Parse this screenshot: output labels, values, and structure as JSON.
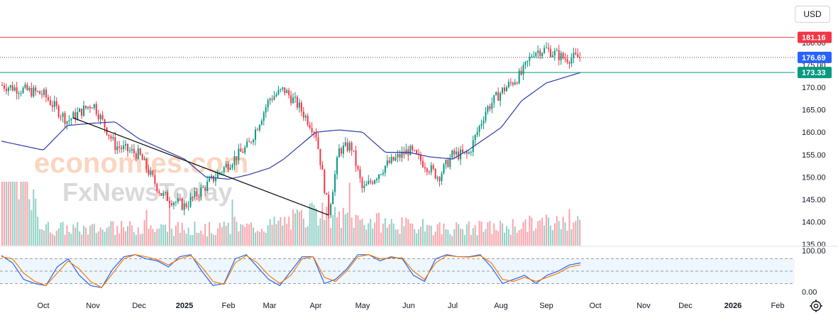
{
  "currency": "USD",
  "watermark": {
    "line1": "economies.com",
    "line2": "FxNewsToday"
  },
  "chart_data": [
    {
      "type": "candlestick",
      "title": "",
      "y_axis": {
        "ticks": [
          135,
          140,
          145,
          150,
          155,
          160,
          165,
          170,
          175,
          180
        ],
        "tick_labels": [
          "135.00",
          "140.00",
          "145.00",
          "150.00",
          "155.00",
          "160.00",
          "165.00",
          "170.00",
          "175.00",
          "180.00"
        ],
        "range": [
          135,
          181.7
        ]
      },
      "x_axis": {
        "labels": [
          "Oct",
          "Nov",
          "Dec",
          "2025",
          "Feb",
          "Mar",
          "Apr",
          "May",
          "Jun",
          "Jul",
          "Aug",
          "Sep",
          "Oct",
          "Nov",
          "Dec",
          "2026",
          "Feb"
        ]
      },
      "grid": false,
      "price_lines": [
        {
          "value": 181.16,
          "label": "181.16",
          "color": "#f23645",
          "style": "solid"
        },
        {
          "value": 176.69,
          "label": "176.69",
          "color": "#2962ff",
          "style": "dotted"
        },
        {
          "value": 173.33,
          "label": "173.33",
          "color": "#089981",
          "style": "solid"
        }
      ],
      "trendline": {
        "start": [
          "Apr",
          141.5
        ],
        "end": [
          "Oct",
          163.2
        ],
        "color": "#000000"
      },
      "moving_average_anchors": [
        [
          "Oct",
          156.0
        ],
        [
          "mid-Oct",
          161.5
        ],
        [
          "Nov",
          162.0
        ],
        [
          "mid-Nov",
          162.3
        ],
        [
          "Dec",
          158.5
        ],
        [
          "2025",
          154.0
        ],
        [
          "mid-Jan",
          150.0
        ],
        [
          "Feb",
          149.5
        ],
        [
          "mid-Feb",
          150.5
        ],
        [
          "Mar",
          152.0
        ],
        [
          "mid-Mar",
          154.0
        ],
        [
          "Apr",
          160.0
        ],
        [
          "mid-Apr",
          160.5
        ],
        [
          "May",
          160.0
        ],
        [
          "mid-May",
          155.5
        ],
        [
          "Jun",
          155.5
        ],
        [
          "mid-Jun",
          154.5
        ],
        [
          "Jul",
          154.0
        ],
        [
          "mid-Jul",
          156.0
        ],
        [
          "Aug",
          161.0
        ],
        [
          "mid-Aug",
          167.0
        ],
        [
          "Sep",
          171.0
        ],
        [
          "late-Sep",
          173.3
        ]
      ],
      "price_anchors": [
        [
          "Oct",
          168.5
        ],
        [
          "mid-Oct",
          162.5
        ],
        [
          "Nov",
          166.5
        ],
        [
          "mid-Nov",
          157.0
        ],
        [
          "Dec",
          155.0
        ],
        [
          "mid-Dec",
          146.0
        ],
        [
          "2025",
          143.5
        ],
        [
          "mid-Jan",
          148.0
        ],
        [
          "Feb",
          153.0
        ],
        [
          "mid-Feb",
          157.0
        ],
        [
          "Mar",
          167.5
        ],
        [
          "mid-Mar",
          169.5
        ],
        [
          "late-Mar",
          166.0
        ],
        [
          "Apr",
          160.0
        ],
        [
          "early-Apr",
          142.0
        ],
        [
          "mid-Apr",
          156.0
        ],
        [
          "late-Apr",
          157.0
        ],
        [
          "May",
          147.0
        ],
        [
          "mid-May",
          152.5
        ],
        [
          "Jun",
          156.0
        ],
        [
          "mid-Jun",
          152.0
        ],
        [
          "late-Jun",
          150.0
        ],
        [
          "Jul",
          155.0
        ],
        [
          "mid-Jul",
          155.0
        ],
        [
          "late-Jul",
          165.0
        ],
        [
          "Aug",
          169.0
        ],
        [
          "mid-Aug",
          173.0
        ],
        [
          "late-Aug",
          178.0
        ],
        [
          "Sep",
          178.5
        ],
        [
          "mid-Sep",
          176.5
        ],
        [
          "late-Sep",
          176.69
        ]
      ],
      "volume_levels": [
        [
          "Oct",
          0.35
        ],
        [
          "Nov",
          0.32
        ],
        [
          "Dec",
          0.35
        ],
        [
          "2025",
          0.33
        ],
        [
          "Feb",
          0.32
        ],
        [
          "Mar",
          0.4
        ],
        [
          "Apr",
          0.6
        ],
        [
          "May",
          0.5
        ],
        [
          "Jun",
          0.38
        ],
        [
          "Jul",
          0.33
        ],
        [
          "Aug",
          0.36
        ],
        [
          "Sep",
          0.45
        ]
      ]
    },
    {
      "type": "line",
      "title": "",
      "y_axis": {
        "ticks": [
          0,
          100
        ],
        "tick_labels": [
          "0.00",
          "100.00"
        ],
        "range": [
          0,
          100
        ]
      },
      "bands": [
        80,
        50,
        20
      ],
      "series": [
        {
          "color": "#2962ff",
          "values": [
            88,
            70,
            30,
            20,
            15,
            60,
            80,
            40,
            15,
            10,
            55,
            85,
            90,
            80,
            75,
            60,
            85,
            90,
            50,
            15,
            20,
            80,
            90,
            60,
            30,
            15,
            50,
            85,
            85,
            20,
            30,
            55,
            90,
            90,
            75,
            85,
            80,
            40,
            25,
            80,
            90,
            85,
            85,
            90,
            60,
            20,
            30,
            40,
            20,
            40,
            50,
            65,
            70
          ]
        },
        {
          "color": "#f57c00",
          "values": [
            85,
            80,
            45,
            25,
            15,
            45,
            75,
            55,
            25,
            10,
            45,
            80,
            90,
            85,
            78,
            65,
            80,
            88,
            60,
            25,
            18,
            70,
            88,
            70,
            40,
            20,
            40,
            80,
            85,
            35,
            25,
            50,
            85,
            90,
            80,
            82,
            82,
            50,
            30,
            70,
            88,
            85,
            84,
            88,
            70,
            30,
            25,
            35,
            25,
            35,
            45,
            60,
            65
          ]
        }
      ]
    }
  ]
}
